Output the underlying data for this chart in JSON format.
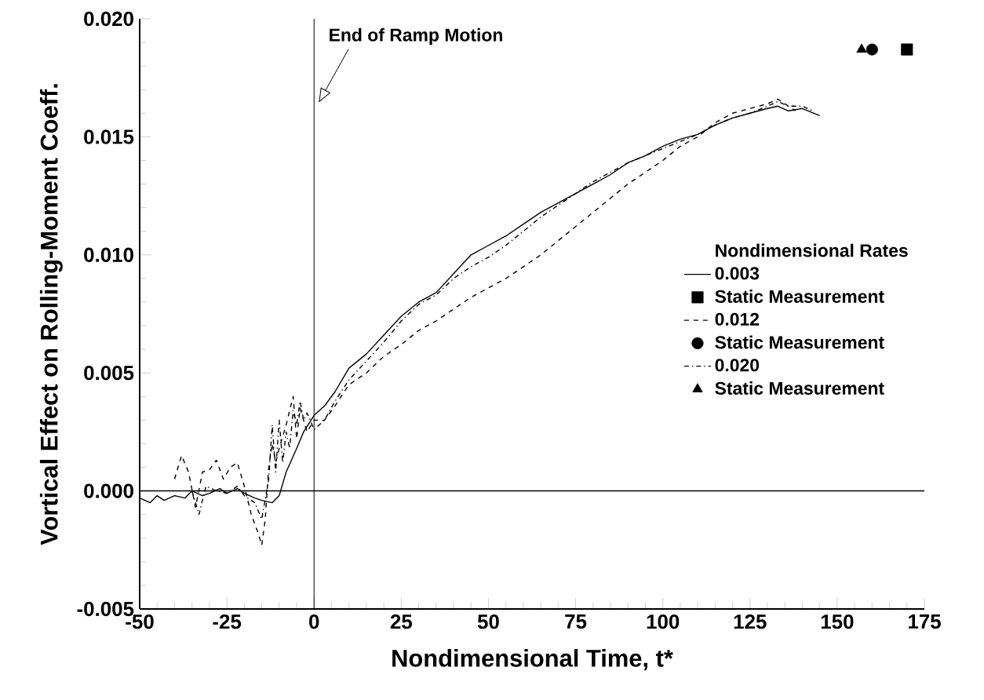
{
  "chart_data": {
    "type": "line",
    "xlabel": "Nondimensional Time,  t*",
    "ylabel": "Vortical Effect on Rolling-Moment Coeff.",
    "legend_title": "Nondimensional Rates",
    "xlim": [
      -50,
      175
    ],
    "xticks": [
      -50,
      -25,
      0,
      25,
      50,
      75,
      100,
      125,
      150,
      175
    ],
    "ylim": [
      -0.005,
      0.02
    ],
    "yticks": [
      {
        "value": -0.005,
        "label": "-0.005"
      },
      {
        "value": 0,
        "label": "0.000"
      },
      {
        "value": 0.005,
        "label": "0.005"
      },
      {
        "value": 0.01,
        "label": "0.010"
      },
      {
        "value": 0.015,
        "label": "0.015"
      },
      {
        "value": 0.02,
        "label": "0.020"
      }
    ],
    "grid": false,
    "legend": "right",
    "ref_lines": [
      {
        "axis": "y",
        "value": 0,
        "color": "#000000"
      },
      {
        "axis": "x",
        "value": 0,
        "label": "End of Ramp Motion",
        "color": "#000000"
      }
    ],
    "series": [
      {
        "name": "0.003",
        "color": "#000000",
        "line_style": "solid",
        "marker": "none",
        "x": [
          -50,
          -47,
          -45,
          -43,
          -40,
          -37,
          -35,
          -32,
          -30,
          -27,
          -25,
          -22,
          -20,
          -17,
          -15,
          -12,
          -10,
          -8,
          -5,
          -3,
          0,
          3,
          6,
          10,
          15,
          20,
          25,
          30,
          35,
          40,
          45,
          50,
          55,
          60,
          65,
          70,
          75,
          80,
          85,
          90,
          95,
          100,
          105,
          110,
          115,
          120,
          125,
          130,
          133,
          136,
          140,
          145
        ],
        "values": [
          -0.0003,
          -0.0005,
          -0.0002,
          -0.0004,
          -0.0002,
          -0.0003,
          0.0,
          -0.0002,
          -0.0001,
          0.0001,
          -0.0001,
          0.0001,
          -0.0001,
          -0.0003,
          -0.0004,
          -0.0005,
          -0.0002,
          0.0008,
          0.0018,
          0.0025,
          0.0032,
          0.0036,
          0.0042,
          0.0052,
          0.0058,
          0.0066,
          0.0074,
          0.008,
          0.0084,
          0.0092,
          0.01,
          0.0104,
          0.0108,
          0.0113,
          0.0118,
          0.0122,
          0.0126,
          0.013,
          0.0134,
          0.0139,
          0.0142,
          0.0146,
          0.0149,
          0.0151,
          0.0155,
          0.0158,
          0.016,
          0.0162,
          0.0163,
          0.0161,
          0.0162,
          0.0159
        ]
      },
      {
        "name": "Static Measurement",
        "type": "scatter",
        "color": "#000000",
        "marker": "square",
        "x": [
          170
        ],
        "values": [
          0.0187
        ]
      },
      {
        "name": "0.012",
        "color": "#000000",
        "line_style": "dashed",
        "marker": "none",
        "x": [
          -40,
          -38,
          -36,
          -34,
          -32,
          -30,
          -28,
          -26,
          -24,
          -22,
          -20,
          -18,
          -16,
          -15,
          -14,
          -13,
          -12,
          -11,
          -10,
          -8,
          -6,
          -5,
          -4,
          -2,
          0,
          3,
          6,
          10,
          15,
          20,
          25,
          30,
          35,
          40,
          45,
          50,
          55,
          60,
          65,
          70,
          75,
          80,
          85,
          90,
          95,
          100,
          105,
          110,
          115,
          120,
          125,
          130,
          133,
          136,
          138
        ],
        "values": [
          0.0005,
          0.0015,
          0.0008,
          -0.0007,
          0.0008,
          0.0009,
          0.0013,
          0.0005,
          0.001,
          0.0012,
          0.0002,
          -0.001,
          -0.0018,
          -0.0023,
          -0.0012,
          0.001,
          0.002,
          0.0012,
          0.0018,
          0.0028,
          0.004,
          0.0022,
          0.0035,
          0.0025,
          0.003,
          0.003,
          0.0036,
          0.0045,
          0.005,
          0.0057,
          0.0062,
          0.0068,
          0.0072,
          0.0077,
          0.0082,
          0.0086,
          0.009,
          0.0095,
          0.01,
          0.0106,
          0.0112,
          0.0118,
          0.0124,
          0.013,
          0.0135,
          0.014,
          0.0146,
          0.015,
          0.0156,
          0.016,
          0.0162,
          0.0164,
          0.0166,
          0.0163,
          0.0161
        ]
      },
      {
        "name": "Static Measurement",
        "type": "scatter",
        "color": "#000000",
        "marker": "circle",
        "x": [
          160
        ],
        "values": [
          0.0187
        ]
      },
      {
        "name": "0.020",
        "color": "#000000",
        "line_style": "dotted",
        "marker": "none",
        "x": [
          -35,
          -33,
          -31,
          -28,
          -25,
          -22,
          -20,
          -17,
          -15,
          -13,
          -12,
          -11,
          -10,
          -9,
          -8,
          -7,
          -6,
          -5,
          -4,
          -3,
          -2,
          0,
          3,
          6,
          10,
          15,
          20,
          25,
          30,
          35,
          40,
          45,
          50,
          55,
          60,
          65,
          70,
          75,
          80,
          85,
          90,
          95,
          100,
          105,
          110,
          115,
          120,
          125,
          130,
          133,
          136,
          140,
          143
        ],
        "values": [
          0.0,
          -0.001,
          0.0002,
          0.0,
          -0.0001,
          0.0002,
          -0.0002,
          -0.0005,
          -0.0012,
          0.0005,
          0.0028,
          0.0008,
          0.003,
          0.0012,
          0.0025,
          0.0018,
          0.0034,
          0.0028,
          0.0038,
          0.003,
          0.0033,
          0.0026,
          0.003,
          0.0038,
          0.0047,
          0.0055,
          0.0063,
          0.0072,
          0.0079,
          0.0083,
          0.009,
          0.0095,
          0.0099,
          0.0104,
          0.011,
          0.0116,
          0.0121,
          0.0126,
          0.0131,
          0.0135,
          0.0139,
          0.0142,
          0.0145,
          0.0148,
          0.0151,
          0.0155,
          0.0158,
          0.016,
          0.0163,
          0.0165,
          0.0163,
          0.0163,
          0.0161
        ]
      },
      {
        "name": "Static Measurement",
        "type": "scatter",
        "color": "#000000",
        "marker": "triangle",
        "x": [
          157
        ],
        "values": [
          0.0187
        ]
      }
    ]
  }
}
